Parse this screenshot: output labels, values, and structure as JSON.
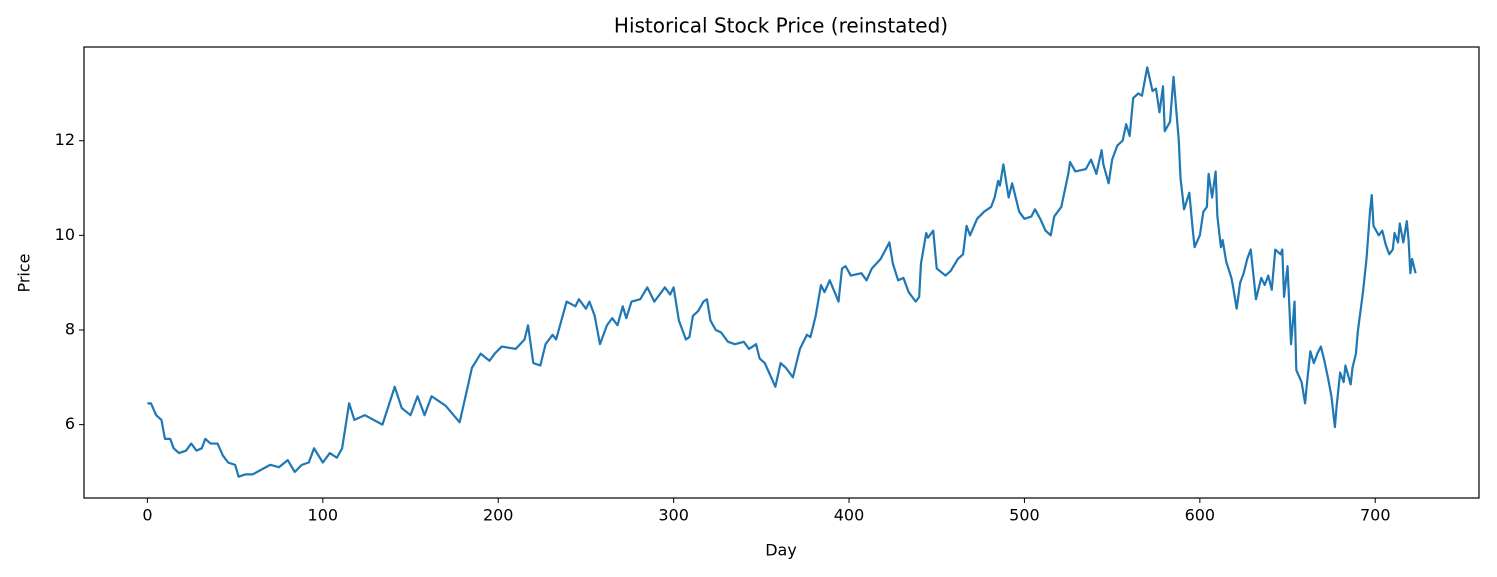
{
  "chart_data": {
    "type": "line",
    "title": "Historical Stock Price (reinstated)",
    "xlabel": "Day",
    "ylabel": "Price",
    "color": "#1f77b4",
    "xlim": [
      -36.15,
      759.15
    ],
    "xticks": [
      0,
      100,
      200,
      300,
      400,
      500,
      600,
      700
    ],
    "ylim": [
      4.45,
      13.98
    ],
    "yticks": [
      6,
      8,
      10,
      12
    ],
    "x": [
      0,
      2,
      5,
      8,
      10,
      13,
      15,
      18,
      22,
      25,
      28,
      31,
      33,
      36,
      40,
      43,
      46,
      50,
      52,
      56,
      60,
      65,
      70,
      75,
      80,
      84,
      88,
      92,
      95,
      100,
      104,
      108,
      111,
      115,
      118,
      124,
      134,
      141,
      145,
      150,
      154,
      158,
      162,
      170,
      178,
      182,
      185,
      190,
      195,
      198,
      202,
      210,
      215,
      217,
      220,
      224,
      227,
      231,
      233,
      236,
      239,
      244,
      246,
      250,
      252,
      255,
      258,
      262,
      265,
      268,
      271,
      273,
      276,
      281,
      285,
      289,
      295,
      298,
      300,
      303,
      307,
      309,
      311,
      314,
      317,
      319,
      321,
      324,
      327,
      331,
      335,
      340,
      343,
      347,
      349,
      352,
      355,
      358,
      361,
      364,
      368,
      370,
      372,
      376,
      378,
      381,
      384,
      386,
      389,
      394,
      396,
      398,
      401,
      407,
      410,
      413,
      418,
      423,
      425,
      428,
      431,
      434,
      438,
      440,
      441,
      444,
      445,
      448,
      450,
      455,
      458,
      462,
      465,
      467,
      469,
      473,
      477,
      481,
      483,
      485,
      486,
      488,
      491,
      493,
      497,
      500,
      504,
      506,
      509,
      512,
      515,
      517,
      521,
      525,
      526,
      529,
      535,
      538,
      541,
      544,
      545,
      548,
      550,
      553,
      556,
      558,
      560,
      562,
      565,
      567,
      570,
      573,
      575,
      577,
      579,
      580,
      583,
      585,
      588,
      589,
      591,
      594,
      596,
      597,
      600,
      602,
      604,
      605,
      607,
      609,
      610,
      612,
      613,
      615,
      618,
      619,
      621,
      623,
      625,
      627,
      629,
      631,
      632,
      635,
      637,
      639,
      641,
      643,
      646,
      647,
      648,
      650,
      652,
      654,
      655,
      658,
      660,
      661,
      663,
      665,
      667,
      669,
      671,
      673,
      675,
      677,
      678,
      680,
      682,
      683,
      686,
      687,
      689,
      690,
      693,
      695,
      697,
      698,
      699,
      702,
      704,
      706,
      708,
      710,
      711,
      713,
      714,
      716,
      718,
      719,
      720,
      721,
      723
    ],
    "values": [
      6.45,
      6.45,
      6.2,
      6.1,
      5.7,
      5.7,
      5.5,
      5.4,
      5.45,
      5.6,
      5.45,
      5.5,
      5.7,
      5.6,
      5.6,
      5.35,
      5.2,
      5.15,
      4.9,
      4.95,
      4.95,
      5.05,
      5.15,
      5.1,
      5.25,
      5.0,
      5.15,
      5.2,
      5.5,
      5.2,
      5.4,
      5.3,
      5.5,
      6.45,
      6.1,
      6.2,
      6.0,
      6.8,
      6.35,
      6.2,
      6.6,
      6.2,
      6.6,
      6.4,
      6.05,
      6.7,
      7.2,
      7.5,
      7.35,
      7.5,
      7.65,
      7.6,
      7.8,
      8.1,
      7.3,
      7.25,
      7.7,
      7.9,
      7.8,
      8.2,
      8.6,
      8.5,
      8.65,
      8.45,
      8.6,
      8.3,
      7.7,
      8.1,
      8.25,
      8.1,
      8.5,
      8.25,
      8.6,
      8.65,
      8.9,
      8.6,
      8.9,
      8.75,
      8.9,
      8.2,
      7.8,
      7.85,
      8.3,
      8.4,
      8.6,
      8.65,
      8.2,
      8.0,
      7.95,
      7.75,
      7.7,
      7.75,
      7.6,
      7.7,
      7.4,
      7.3,
      7.05,
      6.8,
      7.3,
      7.2,
      7.0,
      7.3,
      7.6,
      7.9,
      7.85,
      8.3,
      8.95,
      8.8,
      9.05,
      8.6,
      9.3,
      9.35,
      9.15,
      9.2,
      9.05,
      9.3,
      9.5,
      9.85,
      9.4,
      9.05,
      9.1,
      8.8,
      8.6,
      8.7,
      9.4,
      10.05,
      9.95,
      10.1,
      9.3,
      9.15,
      9.25,
      9.5,
      9.6,
      10.2,
      10.0,
      10.35,
      10.5,
      10.6,
      10.8,
      11.15,
      11.05,
      11.5,
      10.8,
      11.1,
      10.5,
      10.35,
      10.4,
      10.55,
      10.35,
      10.1,
      10.0,
      10.4,
      10.6,
      11.3,
      11.55,
      11.35,
      11.4,
      11.6,
      11.3,
      11.8,
      11.5,
      11.1,
      11.6,
      11.9,
      12.0,
      12.35,
      12.1,
      12.9,
      13.0,
      12.95,
      13.55,
      13.05,
      13.1,
      12.6,
      13.15,
      12.2,
      12.4,
      13.35,
      12.0,
      11.2,
      10.55,
      10.9,
      10.1,
      9.75,
      10.0,
      10.5,
      10.6,
      11.3,
      10.8,
      11.35,
      10.4,
      9.75,
      9.9,
      9.45,
      9.1,
      8.9,
      8.45,
      9.0,
      9.2,
      9.5,
      9.7,
      9.0,
      8.65,
      9.1,
      8.95,
      9.15,
      8.85,
      9.7,
      9.6,
      9.7,
      8.7,
      9.35,
      7.7,
      8.6,
      7.15,
      6.9,
      6.45,
      6.85,
      7.55,
      7.3,
      7.5,
      7.65,
      7.35,
      7.0,
      6.6,
      5.95,
      6.4,
      7.1,
      6.9,
      7.25,
      6.85,
      7.2,
      7.5,
      7.95,
      8.8,
      9.5,
      10.5,
      10.85,
      10.2,
      10.0,
      10.1,
      9.8,
      9.6,
      9.7,
      10.05,
      9.85,
      10.25,
      9.85,
      10.3,
      9.9,
      9.2,
      9.5,
      9.2
    ]
  }
}
